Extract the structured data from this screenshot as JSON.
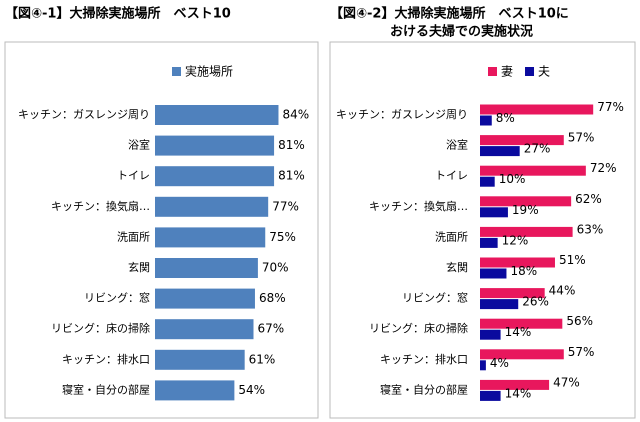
{
  "chart_data": [
    {
      "type": "bar",
      "orientation": "horizontal",
      "title": [
        "【図④-1】大掃除実施場所　ベスト10"
      ],
      "categories": [
        "キッチン：ガスレンジ周り",
        "浴室",
        "トイレ",
        "キッチン：換気扇…",
        "洗面所",
        "玄関",
        "リビング：窓",
        "リビング：床の掃除",
        "キッチン：排水口",
        "寝室・自分の部屋"
      ],
      "series": [
        {
          "name": "実施場所",
          "color": "#4f81bd",
          "values": [
            84,
            81,
            81,
            77,
            75,
            70,
            68,
            67,
            61,
            54
          ],
          "value_labels": [
            "84%",
            "81%",
            "81%",
            "77%",
            "75%",
            "70%",
            "68%",
            "67%",
            "61%",
            "54%"
          ]
        }
      ],
      "legend": "top"
    },
    {
      "type": "bar",
      "orientation": "horizontal",
      "title": [
        "【図④-2】大掃除実施場所　ベスト10に",
        "おける夫婦での実施状況"
      ],
      "categories": [
        "キッチン：ガスレンジ周り",
        "浴室",
        "トイレ",
        "キッチン：換気扇…",
        "洗面所",
        "玄関",
        "リビング：窓",
        "リビング：床の掃除",
        "キッチン：排水口",
        "寝室・自分の部屋"
      ],
      "series": [
        {
          "name": "妻",
          "color": "#e8175d",
          "values": [
            77,
            57,
            72,
            62,
            63,
            51,
            44,
            56,
            57,
            47
          ],
          "value_labels": [
            "77%",
            "57%",
            "72%",
            "62%",
            "63%",
            "51%",
            "44%",
            "56%",
            "57%",
            "47%"
          ]
        },
        {
          "name": "夫",
          "color": "#0a0a9e",
          "values": [
            8,
            27,
            10,
            19,
            12,
            18,
            26,
            14,
            4,
            14
          ],
          "value_labels": [
            "8%",
            "27%",
            "10%",
            "19%",
            "12%",
            "18%",
            "26%",
            "14%",
            "4%",
            "14%"
          ]
        }
      ],
      "legend": "top"
    }
  ]
}
